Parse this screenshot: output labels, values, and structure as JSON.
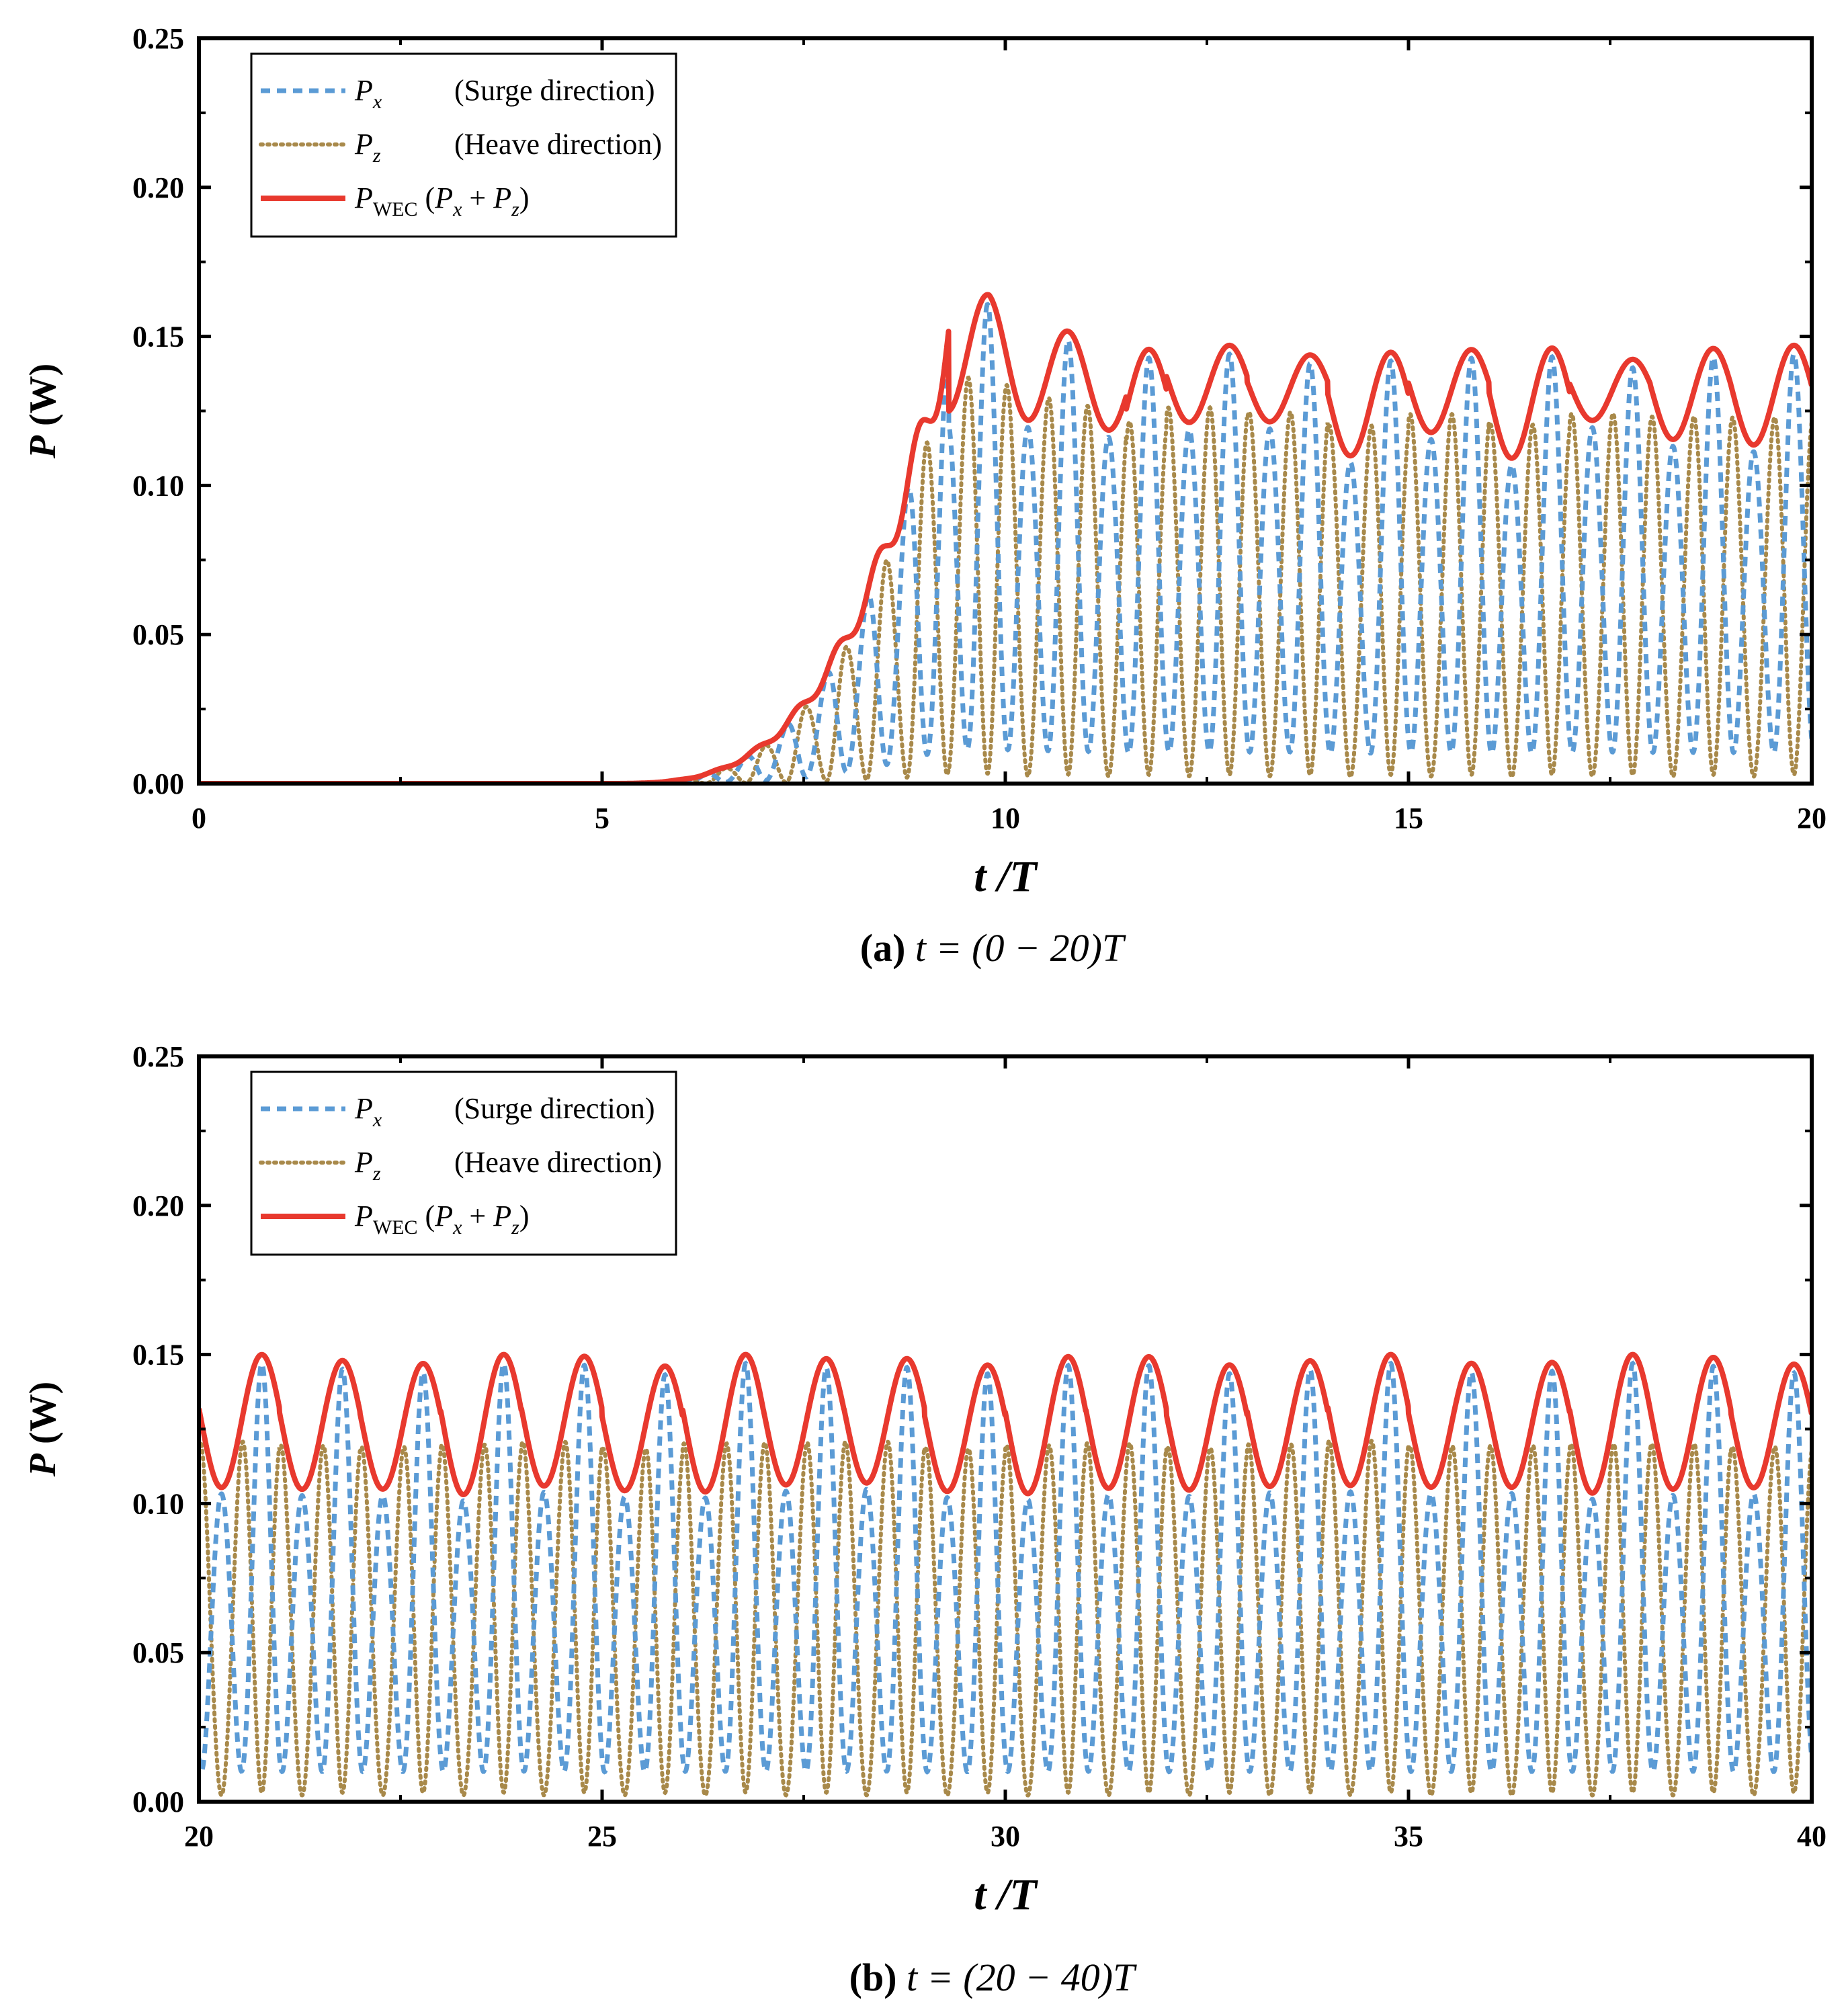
{
  "figure": {
    "colors": {
      "px": "#5b9bd5",
      "pz": "#a8894a",
      "pwec": "#e8392e",
      "axis": "#000000"
    },
    "legend": [
      {
        "symbol": "P",
        "sub": "x",
        "label": "(Surge direction)"
      },
      {
        "symbol": "P",
        "sub": "z",
        "label": "(Heave direction)"
      },
      {
        "symbol": "P",
        "sub": "WEC",
        "expr_open": "(",
        "p1": "P",
        "s1": "x",
        "plus": " + ",
        "p2": "P",
        "s2": "z",
        "expr_close": ")"
      }
    ],
    "ylabel_main": "P",
    "ylabel_unit": " (W)",
    "xlabel_t": "t",
    "xlabel_slash": " /",
    "xlabel_T": "T"
  },
  "chart_data": [
    {
      "type": "line",
      "panel": "a",
      "caption_letter": "(a)",
      "caption_expr": "t = (0 − 20)T",
      "xlim": [
        0,
        20
      ],
      "ylim": [
        0,
        0.25
      ],
      "xticks": [
        "0",
        "5",
        "10",
        "15",
        "20"
      ],
      "yticks": [
        "0.00",
        "0.05",
        "0.10",
        "0.15",
        "0.20",
        "0.25"
      ],
      "xlabel": "t /T",
      "ylabel": "P (W)",
      "series": [
        {
          "name": "Px (Surge direction)",
          "style": "dashed"
        },
        {
          "name": "Pz (Heave direction)",
          "style": "dotted"
        },
        {
          "name": "PWEC (Px + Pz)",
          "style": "solid"
        }
      ],
      "ramp_start": 5.0,
      "steady_from": 9.3,
      "peak": {
        "t": 9.8,
        "value": 0.164
      },
      "steady_max_range": [
        0.138,
        0.147
      ],
      "steady_min_range": [
        0.108,
        0.122
      ],
      "oscillation_period": 1.0
    },
    {
      "type": "line",
      "panel": "b",
      "caption_letter": "(b)",
      "caption_expr": "t = (20 − 40)T",
      "xlim": [
        20,
        40
      ],
      "ylim": [
        0,
        0.25
      ],
      "xticks": [
        "20",
        "25",
        "30",
        "35",
        "40"
      ],
      "yticks": [
        "0.00",
        "0.05",
        "0.10",
        "0.15",
        "0.20",
        "0.25"
      ],
      "xlabel": "t /T",
      "ylabel": "P (W)",
      "series": [
        {
          "name": "Px (Surge direction)",
          "style": "dashed"
        },
        {
          "name": "Pz (Heave direction)",
          "style": "dotted"
        },
        {
          "name": "PWEC (Px + Pz)",
          "style": "solid"
        }
      ],
      "steady_max_range": [
        0.143,
        0.15
      ],
      "steady_min_range": [
        0.103,
        0.107
      ],
      "oscillation_period": 1.0
    }
  ]
}
